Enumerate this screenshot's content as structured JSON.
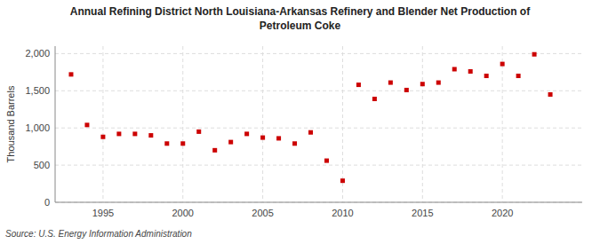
{
  "chart_data": {
    "type": "scatter",
    "title": "Annual Refining District North Louisiana-Arkansas Refinery and Blender Net Production of\nPetroleum Coke",
    "ylabel": "Thousand Barrels",
    "source": "Source: U.S. Energy Information Administration",
    "x": [
      1993,
      1994,
      1995,
      1996,
      1997,
      1998,
      1999,
      2000,
      2001,
      2002,
      2003,
      2004,
      2005,
      2006,
      2007,
      2008,
      2009,
      2010,
      2011,
      2012,
      2013,
      2014,
      2015,
      2016,
      2017,
      2018,
      2019,
      2020,
      2021,
      2022,
      2023
    ],
    "values": [
      1720,
      1040,
      880,
      920,
      920,
      900,
      790,
      790,
      950,
      700,
      810,
      920,
      870,
      860,
      790,
      940,
      560,
      290,
      1580,
      1390,
      1610,
      1510,
      1590,
      1610,
      1790,
      1760,
      1700,
      1860,
      1700,
      1990,
      1450
    ],
    "color": "#cc0000",
    "marker": "square",
    "xlim": [
      1992.0,
      2025.0
    ],
    "xticks": [
      1995,
      2000,
      2005,
      2010,
      2015,
      2020
    ],
    "ylim": [
      0,
      2100
    ],
    "yticks": [
      0,
      500,
      {
        "value": 1000,
        "label": "1,000"
      },
      {
        "value": 1500,
        "label": "1,500"
      },
      {
        "value": 2000,
        "label": "2,000"
      }
    ],
    "grid": true
  }
}
